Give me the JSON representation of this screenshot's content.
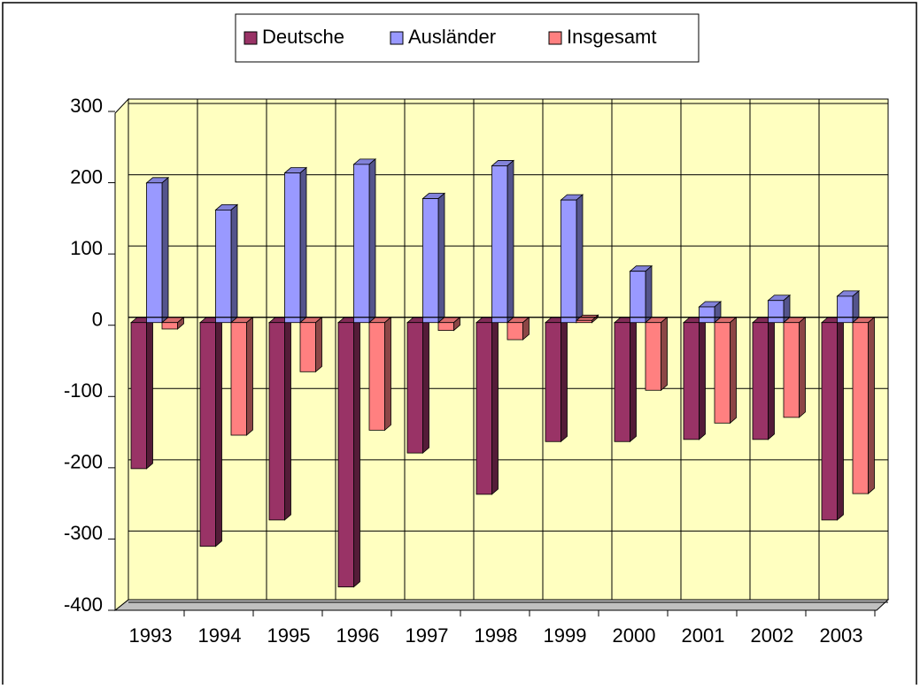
{
  "chart_data": {
    "type": "bar",
    "categories": [
      "1993",
      "1994",
      "1995",
      "1996",
      "1997",
      "1998",
      "1999",
      "2000",
      "2001",
      "2002",
      "2003"
    ],
    "series": [
      {
        "name": "Deutsche",
        "color": "#993366",
        "values": [
          -205,
          -314,
          -277,
          -371,
          -183,
          -241,
          -167,
          -167,
          -164,
          -164,
          -277
        ]
      },
      {
        "name": "Ausländer",
        "color": "#9999ff",
        "values": [
          196,
          158,
          210,
          222,
          174,
          220,
          172,
          72,
          22,
          31,
          37
        ]
      },
      {
        "name": "Insgesamt",
        "color": "#ff8080",
        "values": [
          -9,
          -158,
          -69,
          -151,
          -11,
          -24,
          3,
          -95,
          -141,
          -133,
          -240
        ]
      }
    ],
    "ylim": [
      -400,
      300
    ],
    "yticks": [
      -400,
      -300,
      -200,
      -100,
      0,
      100,
      200,
      300
    ],
    "grid": true,
    "legend": "top"
  }
}
